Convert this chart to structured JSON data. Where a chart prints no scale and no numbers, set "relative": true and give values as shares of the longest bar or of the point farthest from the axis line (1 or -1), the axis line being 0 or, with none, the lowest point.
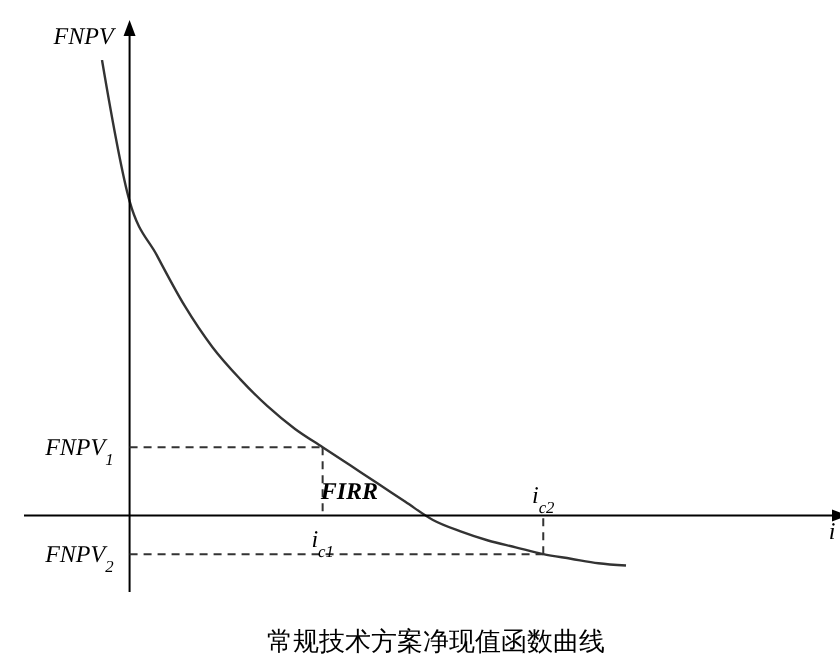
{
  "chart_data": {
    "type": "line",
    "relative": true,
    "title": "常规技术方案净现值函数曲线",
    "ylabel": "FNPV",
    "categories": [
      null,
      null,
      null,
      null,
      null,
      null,
      null,
      null,
      "i$_{c1}$",
      null,
      null,
      null,
      null,
      null,
      null,
      null,
      "i$_{c2}$",
      null,
      null,
      null
    ],
    "series": [
      {
        "color": "#333333",
        "values": [
          1.0,
          0.69,
          0.57,
          0.46,
          0.37,
          0.3,
          0.24,
          0.19,
          0.15,
          0.11,
          0.07,
          0.03,
          -0.01,
          -0.035,
          -0.055,
          -0.07,
          -0.085,
          -0.095,
          -0.105,
          -0.11
        ]
      },
      {
        "color": "#333333",
        "line_style": "dashed",
        "values": [
          null,
          0.15,
          0.15,
          0.15,
          0.15,
          0.15,
          0.15,
          0.15,
          0.15,
          null,
          null,
          null,
          null,
          null,
          null,
          null,
          null,
          null,
          null,
          null
        ]
      },
      {
        "color": "#333333",
        "line_style": "dashed",
        "values": [
          null,
          -0.085,
          -0.085,
          -0.085,
          -0.085,
          -0.085,
          -0.085,
          -0.085,
          -0.085,
          -0.085,
          -0.085,
          -0.085,
          -0.085,
          -0.085,
          -0.085,
          -0.085,
          -0.085,
          null,
          null,
          null
        ]
      }
    ],
    "annotations": [
      "FNPV$_{1}$",
      "FNPV$_{2}$",
      "FIRR",
      "i"
    ]
  }
}
